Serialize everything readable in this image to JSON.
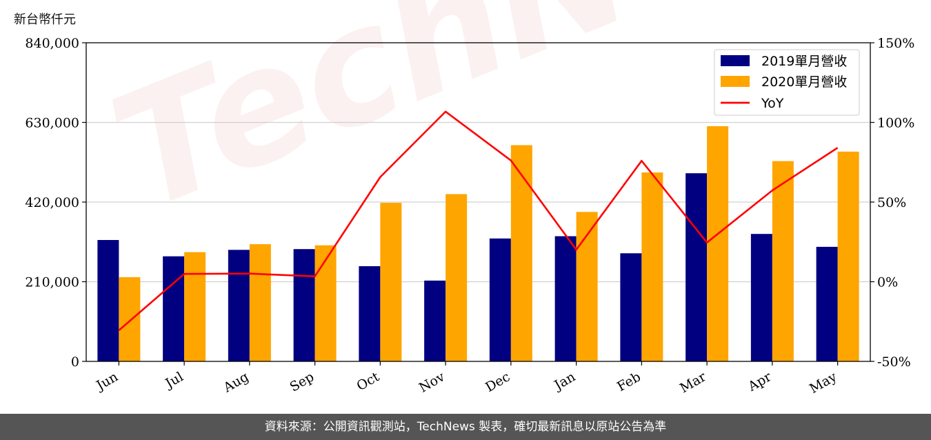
{
  "chart_data": {
    "type": "bar",
    "y_unit_label": "新台幣仟元",
    "categories": [
      "Jun",
      "Jul",
      "Aug",
      "Sep",
      "Oct",
      "Nov",
      "Dec",
      "Jan",
      "Feb",
      "Mar",
      "Apr",
      "May"
    ],
    "series": [
      {
        "name": "2019單月營收",
        "type": "bar",
        "axis": "left",
        "color": "#000080",
        "values": [
          320000,
          277000,
          294000,
          296000,
          251000,
          213000,
          324000,
          330000,
          285000,
          496000,
          336000,
          302000
        ]
      },
      {
        "name": "2020單月營收",
        "type": "bar",
        "axis": "left",
        "color": "#FFA500",
        "values": [
          222000,
          288000,
          309000,
          306000,
          418000,
          441000,
          570000,
          394000,
          498000,
          620000,
          528000,
          553000
        ]
      },
      {
        "name": "YoY",
        "type": "line",
        "axis": "right",
        "color": "#FF0000",
        "values": [
          -30.5,
          4.9,
          5.1,
          3.4,
          65.7,
          106.8,
          76.1,
          20.1,
          75.9,
          24.6,
          57.3,
          84.1
        ]
      }
    ],
    "ylim_left": [
      0,
      840000
    ],
    "yticks_left": [
      "0",
      "210,000",
      "420,000",
      "630,000",
      "840,000"
    ],
    "yticks_left_values": [
      0,
      210000,
      420000,
      630000,
      840000
    ],
    "ylim_right": [
      -50,
      150
    ],
    "yticks_right": [
      "-50%",
      "0%",
      "50%",
      "100%",
      "150%"
    ],
    "yticks_right_values": [
      -50,
      0,
      50,
      100,
      150
    ],
    "grid": "horizontal",
    "legend": "top-right"
  },
  "watermark": "TechNews",
  "footer": {
    "source_text": "資料來源：公開資訊觀測站，TechNews 製表，確切最新訊息以原站公告為準"
  }
}
